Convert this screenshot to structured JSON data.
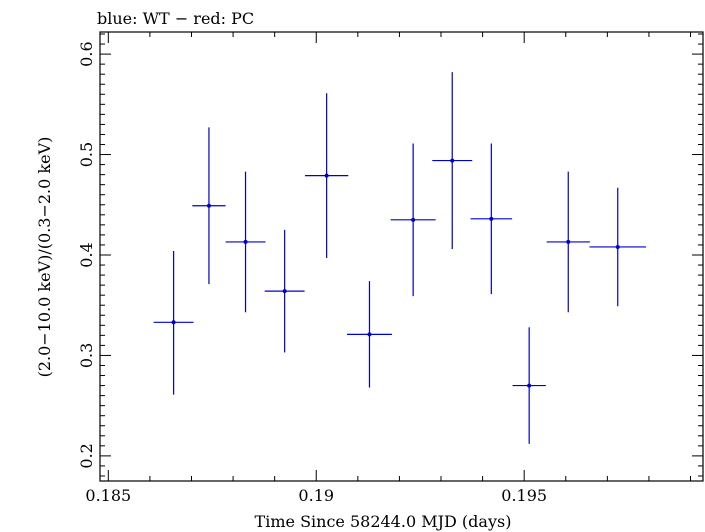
{
  "chart_data": {
    "type": "scatter",
    "title": "blue: WT − red: PC",
    "xlabel": "Time Since 58244.0 MJD (days)",
    "ylabel": "(2.0−10.0 keV)/(0.3−2.0 keV)",
    "xlim": [
      0.1848,
      0.1993
    ],
    "ylim": [
      0.175,
      0.622
    ],
    "x_ticks": [
      {
        "value": 0.185,
        "label": "0.185"
      },
      {
        "value": 0.19,
        "label": "0.19"
      },
      {
        "value": 0.195,
        "label": "0.195"
      }
    ],
    "y_ticks": [
      {
        "value": 0.2,
        "label": "0.2"
      },
      {
        "value": 0.3,
        "label": "0.3"
      },
      {
        "value": 0.4,
        "label": "0.4"
      },
      {
        "value": 0.5,
        "label": "0.5"
      },
      {
        "value": 0.6,
        "label": "0.6"
      }
    ],
    "grid": false,
    "series": [
      {
        "color": "#0000cc",
        "points": [
          {
            "x": 0.18657,
            "y": 0.333,
            "xerr": 0.00048,
            "yerr_low": 0.072,
            "yerr_high": 0.071
          },
          {
            "x": 0.18742,
            "y": 0.449,
            "xerr": 0.0004,
            "yerr_low": 0.078,
            "yerr_high": 0.078
          },
          {
            "x": 0.1883,
            "y": 0.413,
            "xerr": 0.00048,
            "yerr_low": 0.07,
            "yerr_high": 0.07
          },
          {
            "x": 0.18924,
            "y": 0.364,
            "xerr": 0.00048,
            "yerr_low": 0.061,
            "yerr_high": 0.061
          },
          {
            "x": 0.19025,
            "y": 0.479,
            "xerr": 0.00052,
            "yerr_low": 0.082,
            "yerr_high": 0.082
          },
          {
            "x": 0.19128,
            "y": 0.321,
            "xerr": 0.00054,
            "yerr_low": 0.053,
            "yerr_high": 0.053
          },
          {
            "x": 0.19233,
            "y": 0.435,
            "xerr": 0.00054,
            "yerr_low": 0.076,
            "yerr_high": 0.076
          },
          {
            "x": 0.19327,
            "y": 0.494,
            "xerr": 0.00048,
            "yerr_low": 0.088,
            "yerr_high": 0.088
          },
          {
            "x": 0.19421,
            "y": 0.436,
            "xerr": 0.0005,
            "yerr_low": 0.075,
            "yerr_high": 0.075
          },
          {
            "x": 0.19512,
            "y": 0.27,
            "xerr": 0.0004,
            "yerr_low": 0.058,
            "yerr_high": 0.058
          },
          {
            "x": 0.19606,
            "y": 0.413,
            "xerr": 0.00052,
            "yerr_low": 0.07,
            "yerr_high": 0.07
          },
          {
            "x": 0.19725,
            "y": 0.408,
            "xerr": 0.00068,
            "yerr_low": 0.059,
            "yerr_high": 0.059
          }
        ]
      }
    ]
  }
}
